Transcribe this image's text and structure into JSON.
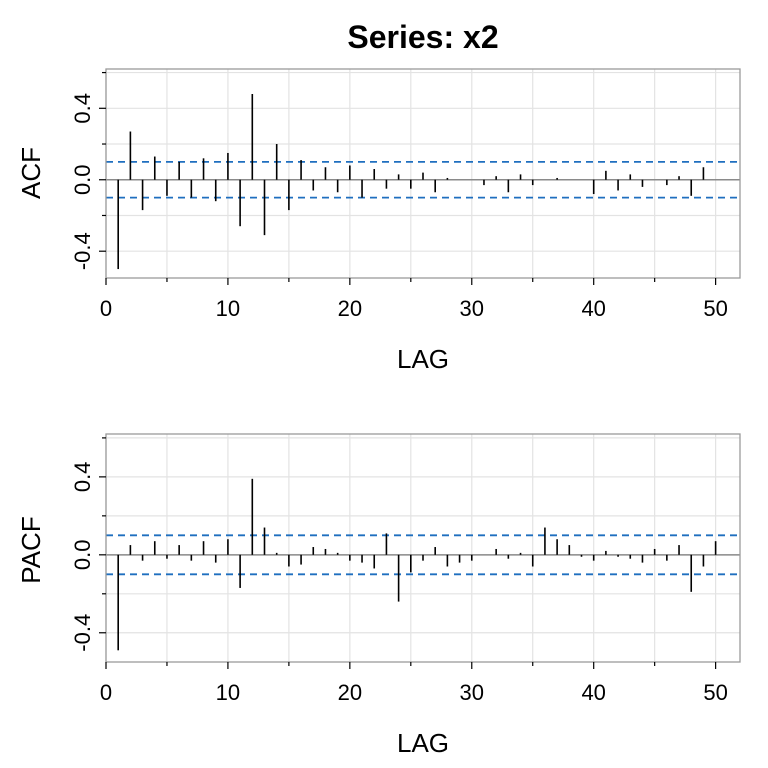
{
  "title": "Series:  x2",
  "colors": {
    "bar": "#000000",
    "ci": "#1F6FBF",
    "grid": "#E3E3E3",
    "frame": "#9A9A9A",
    "zero": "#8A8A8A"
  },
  "chart_data": [
    {
      "type": "bar",
      "name": "acf",
      "ylabel": "ACF",
      "xlabel": "LAG",
      "xlim": [
        0,
        52
      ],
      "ylim": [
        -0.55,
        0.62
      ],
      "x_ticks": [
        0,
        10,
        20,
        30,
        40,
        50
      ],
      "y_ticks": [
        -0.4,
        0.0,
        0.4
      ],
      "y_tick_labels": [
        "-0.4",
        "0.0",
        "0.4"
      ],
      "grid": true,
      "ci": 0.1,
      "x": [
        1,
        2,
        3,
        4,
        5,
        6,
        7,
        8,
        9,
        10,
        11,
        12,
        13,
        14,
        15,
        16,
        17,
        18,
        19,
        20,
        21,
        22,
        23,
        24,
        25,
        26,
        27,
        28,
        29,
        30,
        31,
        32,
        33,
        34,
        35,
        36,
        37,
        38,
        39,
        40,
        41,
        42,
        43,
        44,
        45,
        46,
        47,
        48,
        49,
        50
      ],
      "values": [
        -0.5,
        0.27,
        -0.17,
        0.13,
        -0.09,
        0.1,
        -0.1,
        0.12,
        -0.12,
        0.15,
        -0.26,
        0.48,
        -0.31,
        0.2,
        -0.17,
        0.11,
        -0.06,
        0.07,
        -0.07,
        0.08,
        -0.1,
        0.06,
        -0.05,
        0.03,
        -0.05,
        0.04,
        -0.07,
        0.01,
        0.0,
        0.0,
        -0.03,
        0.02,
        -0.07,
        0.03,
        -0.03,
        0.0,
        0.01,
        0.0,
        0.0,
        -0.08,
        0.05,
        -0.06,
        0.03,
        -0.04,
        0.0,
        -0.03,
        0.02,
        -0.09,
        0.07,
        0.0
      ]
    },
    {
      "type": "bar",
      "name": "pacf",
      "ylabel": "PACF",
      "xlabel": "LAG",
      "xlim": [
        0,
        52
      ],
      "ylim": [
        -0.55,
        0.62
      ],
      "x_ticks": [
        0,
        10,
        20,
        30,
        40,
        50
      ],
      "y_ticks": [
        -0.4,
        0.0,
        0.4
      ],
      "y_tick_labels": [
        "-0.4",
        "0.0",
        "0.4"
      ],
      "grid": true,
      "ci": 0.1,
      "x": [
        1,
        2,
        3,
        4,
        5,
        6,
        7,
        8,
        9,
        10,
        11,
        12,
        13,
        14,
        15,
        16,
        17,
        18,
        19,
        20,
        21,
        22,
        23,
        24,
        25,
        26,
        27,
        28,
        29,
        30,
        31,
        32,
        33,
        34,
        35,
        36,
        37,
        38,
        39,
        40,
        41,
        42,
        43,
        44,
        45,
        46,
        47,
        48,
        49,
        50
      ],
      "values": [
        -0.49,
        0.05,
        -0.03,
        0.07,
        -0.02,
        0.05,
        -0.03,
        0.07,
        -0.04,
        0.08,
        -0.17,
        0.39,
        0.14,
        0.01,
        -0.06,
        -0.05,
        0.04,
        0.03,
        0.01,
        -0.03,
        -0.04,
        -0.07,
        0.11,
        -0.24,
        -0.09,
        -0.03,
        0.04,
        -0.06,
        -0.04,
        -0.03,
        0.0,
        0.03,
        -0.02,
        0.01,
        -0.06,
        0.14,
        0.08,
        0.05,
        -0.01,
        -0.03,
        0.02,
        -0.01,
        -0.02,
        -0.04,
        0.03,
        -0.03,
        0.05,
        -0.19,
        -0.06,
        0.07
      ]
    }
  ]
}
